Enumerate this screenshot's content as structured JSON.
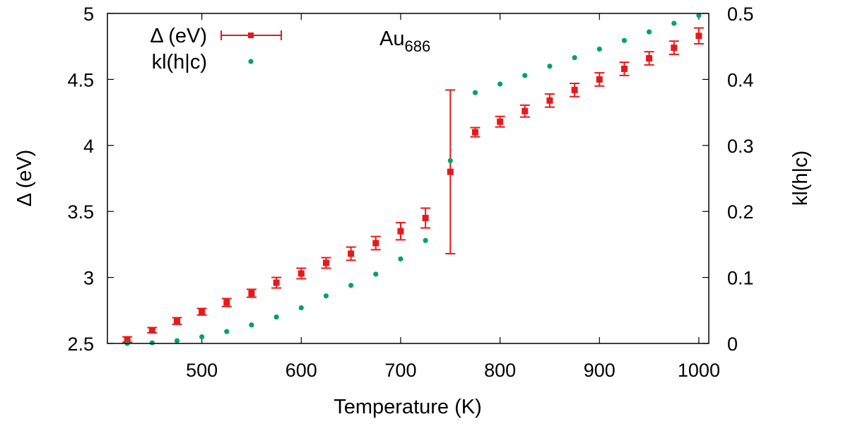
{
  "chart_data": {
    "type": "scatter",
    "annotation": {
      "text": "Au",
      "subscript": "686"
    },
    "xlabel": "Temperature (K)",
    "ylabel": "Δ (eV)",
    "y2label": "kl(h|c)",
    "xlim": [
      405,
      1010
    ],
    "ylim": [
      2.5,
      5
    ],
    "y2lim": [
      0,
      0.5
    ],
    "x_ticks": [
      500,
      600,
      700,
      800,
      900,
      1000
    ],
    "y_ticks": [
      2.5,
      3,
      3.5,
      4,
      4.5,
      5
    ],
    "y2_ticks": [
      0,
      0.1,
      0.2,
      0.3,
      0.4,
      0.5
    ],
    "legend_position": "top-left",
    "series": [
      {
        "name": "Δ (eV)",
        "axis": "y",
        "style": "points-with-errorbars",
        "color": "#e8181b",
        "x": [
          425,
          450,
          475,
          500,
          525,
          550,
          575,
          600,
          625,
          650,
          675,
          700,
          725,
          750,
          775,
          800,
          825,
          850,
          875,
          900,
          925,
          950,
          975,
          1000
        ],
        "y": [
          2.53,
          2.6,
          2.67,
          2.74,
          2.81,
          2.88,
          2.96,
          3.03,
          3.11,
          3.18,
          3.26,
          3.35,
          3.45,
          3.8,
          4.1,
          4.18,
          4.26,
          4.34,
          4.42,
          4.5,
          4.58,
          4.66,
          4.74,
          4.83
        ],
        "yerr": [
          0.02,
          0.02,
          0.025,
          0.025,
          0.03,
          0.03,
          0.04,
          0.04,
          0.04,
          0.05,
          0.05,
          0.065,
          0.075,
          0.62,
          0.035,
          0.04,
          0.045,
          0.05,
          0.05,
          0.05,
          0.05,
          0.05,
          0.05,
          0.06
        ]
      },
      {
        "name": "kl(h|c)",
        "axis": "y2",
        "style": "points",
        "color": "#00a06e",
        "x": [
          425,
          450,
          475,
          500,
          525,
          550,
          575,
          600,
          625,
          650,
          675,
          700,
          725,
          750,
          775,
          800,
          825,
          850,
          875,
          900,
          925,
          950,
          975,
          1000
        ],
        "y": [
          0.0,
          0.001,
          0.004,
          0.01,
          0.018,
          0.028,
          0.04,
          0.054,
          0.072,
          0.088,
          0.105,
          0.128,
          0.156,
          0.277,
          0.38,
          0.393,
          0.406,
          0.42,
          0.433,
          0.446,
          0.459,
          0.472,
          0.485,
          0.497
        ]
      }
    ]
  }
}
